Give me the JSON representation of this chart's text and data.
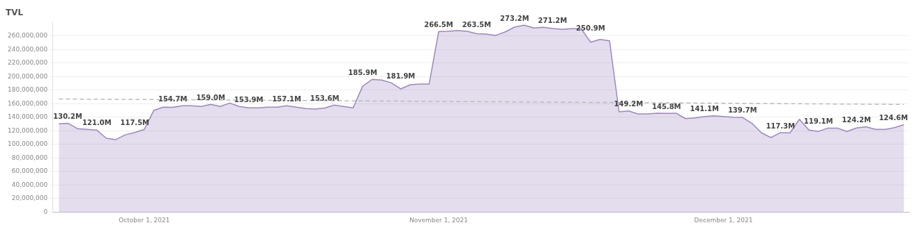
{
  "chart_data": {
    "type": "area",
    "title": "TVL",
    "grid": "y",
    "legend": false,
    "marker": "none",
    "x": [
      "2021-09-22",
      "2021-09-23",
      "2021-09-24",
      "2021-09-25",
      "2021-09-26",
      "2021-09-27",
      "2021-09-28",
      "2021-09-29",
      "2021-09-30",
      "2021-10-01",
      "2021-10-02",
      "2021-10-03",
      "2021-10-04",
      "2021-10-05",
      "2021-10-06",
      "2021-10-07",
      "2021-10-08",
      "2021-10-09",
      "2021-10-10",
      "2021-10-11",
      "2021-10-12",
      "2021-10-13",
      "2021-10-14",
      "2021-10-15",
      "2021-10-16",
      "2021-10-17",
      "2021-10-18",
      "2021-10-19",
      "2021-10-20",
      "2021-10-21",
      "2021-10-22",
      "2021-10-23",
      "2021-10-24",
      "2021-10-25",
      "2021-10-26",
      "2021-10-27",
      "2021-10-28",
      "2021-10-29",
      "2021-10-30",
      "2021-10-31",
      "2021-11-01",
      "2021-11-02",
      "2021-11-03",
      "2021-11-04",
      "2021-11-05",
      "2021-11-06",
      "2021-11-07",
      "2021-11-08",
      "2021-11-09",
      "2021-11-10",
      "2021-11-11",
      "2021-11-12",
      "2021-11-13",
      "2021-11-14",
      "2021-11-15",
      "2021-11-16",
      "2021-11-17",
      "2021-11-18",
      "2021-11-19",
      "2021-11-20",
      "2021-11-21",
      "2021-11-22",
      "2021-11-23",
      "2021-11-24",
      "2021-11-25",
      "2021-11-26",
      "2021-11-27",
      "2021-11-28",
      "2021-11-29",
      "2021-11-30",
      "2021-12-01",
      "2021-12-02",
      "2021-12-03",
      "2021-12-04",
      "2021-12-05",
      "2021-12-06",
      "2021-12-07",
      "2021-12-08",
      "2021-12-09",
      "2021-12-10",
      "2021-12-11",
      "2021-12-12",
      "2021-12-13",
      "2021-12-14",
      "2021-12-15",
      "2021-12-16",
      "2021-12-17",
      "2021-12-18",
      "2021-12-19",
      "2021-12-20"
    ],
    "series": [
      {
        "type": "area",
        "color": "#9c86bf",
        "values": [
          130200000,
          131000000,
          123000000,
          122000000,
          121000000,
          109000000,
          107000000,
          114000000,
          117500000,
          122000000,
          150000000,
          155000000,
          154700000,
          157000000,
          157000000,
          156000000,
          159000000,
          156000000,
          161000000,
          156000000,
          153900000,
          154000000,
          155000000,
          155000000,
          157100000,
          155000000,
          153000000,
          152000000,
          153600000,
          158000000,
          156000000,
          154000000,
          185900000,
          196000000,
          195000000,
          191000000,
          181900000,
          188000000,
          189000000,
          189000000,
          266500000,
          267000000,
          268000000,
          267000000,
          263500000,
          263000000,
          261000000,
          266000000,
          273200000,
          276000000,
          272000000,
          273000000,
          271200000,
          270000000,
          271000000,
          271000000,
          250900000,
          255000000,
          253000000,
          148000000,
          149200000,
          145000000,
          145000000,
          146000000,
          145800000,
          146000000,
          138000000,
          139000000,
          141100000,
          142000000,
          141000000,
          140000000,
          139700000,
          131000000,
          117000000,
          110000000,
          117300000,
          117000000,
          137000000,
          121000000,
          119100000,
          124000000,
          124000000,
          119000000,
          124200000,
          126000000,
          122000000,
          122000000,
          124600000,
          129000000
        ],
        "value_labels": [
          "130.2M",
          null,
          null,
          null,
          "121.0M",
          null,
          null,
          null,
          "117.5M",
          null,
          null,
          null,
          "154.7M",
          null,
          null,
          null,
          "159.0M",
          null,
          null,
          null,
          "153.9M",
          null,
          null,
          null,
          "157.1M",
          null,
          null,
          null,
          "153.6M",
          null,
          null,
          null,
          "185.9M",
          null,
          null,
          null,
          "181.9M",
          null,
          null,
          null,
          "266.5M",
          null,
          null,
          null,
          "263.5M",
          null,
          null,
          null,
          "273.2M",
          null,
          null,
          null,
          "271.2M",
          null,
          null,
          null,
          "250.9M",
          null,
          null,
          null,
          "149.2M",
          null,
          null,
          null,
          "145.8M",
          null,
          null,
          null,
          "141.1M",
          null,
          null,
          null,
          "139.7M",
          null,
          null,
          null,
          "117.3M",
          null,
          null,
          null,
          "119.1M",
          null,
          null,
          null,
          "124.2M",
          null,
          null,
          null,
          "124.6M",
          null
        ]
      },
      {
        "type": "line",
        "color": "#bbbbbb",
        "line_style": "dashed",
        "x": [
          "2021-09-22",
          "2021-12-20"
        ],
        "values": [
          167000000,
          159000000
        ]
      }
    ],
    "xlim": [
      "2021-09-21T08:00",
      "2021-12-20T12:00"
    ],
    "xticks": [
      {
        "value": "2021-10-01",
        "label": "October 1, 2021"
      },
      {
        "value": "2021-11-01",
        "label": "November 1, 2021"
      },
      {
        "value": "2021-12-01",
        "label": "December 1, 2021"
      }
    ],
    "ylim": [
      0,
      280000000
    ],
    "yticks": [
      {
        "value": 0,
        "label": "0"
      },
      {
        "value": 20000000,
        "label": "20,000,000"
      },
      {
        "value": 40000000,
        "label": "40,000,000"
      },
      {
        "value": 60000000,
        "label": "60,000,000"
      },
      {
        "value": 80000000,
        "label": "80,000,000"
      },
      {
        "value": 100000000,
        "label": "100,000,000"
      },
      {
        "value": 120000000,
        "label": "120,000,000"
      },
      {
        "value": 140000000,
        "label": "140,000,000"
      },
      {
        "value": 160000000,
        "label": "160,000,000"
      },
      {
        "value": 180000000,
        "label": "180,000,000"
      },
      {
        "value": 200000000,
        "label": "200,000,000"
      },
      {
        "value": 220000000,
        "label": "220,000,000"
      },
      {
        "value": 240000000,
        "label": "240,000,000"
      },
      {
        "value": 260000000,
        "label": "260,000,000"
      }
    ]
  }
}
